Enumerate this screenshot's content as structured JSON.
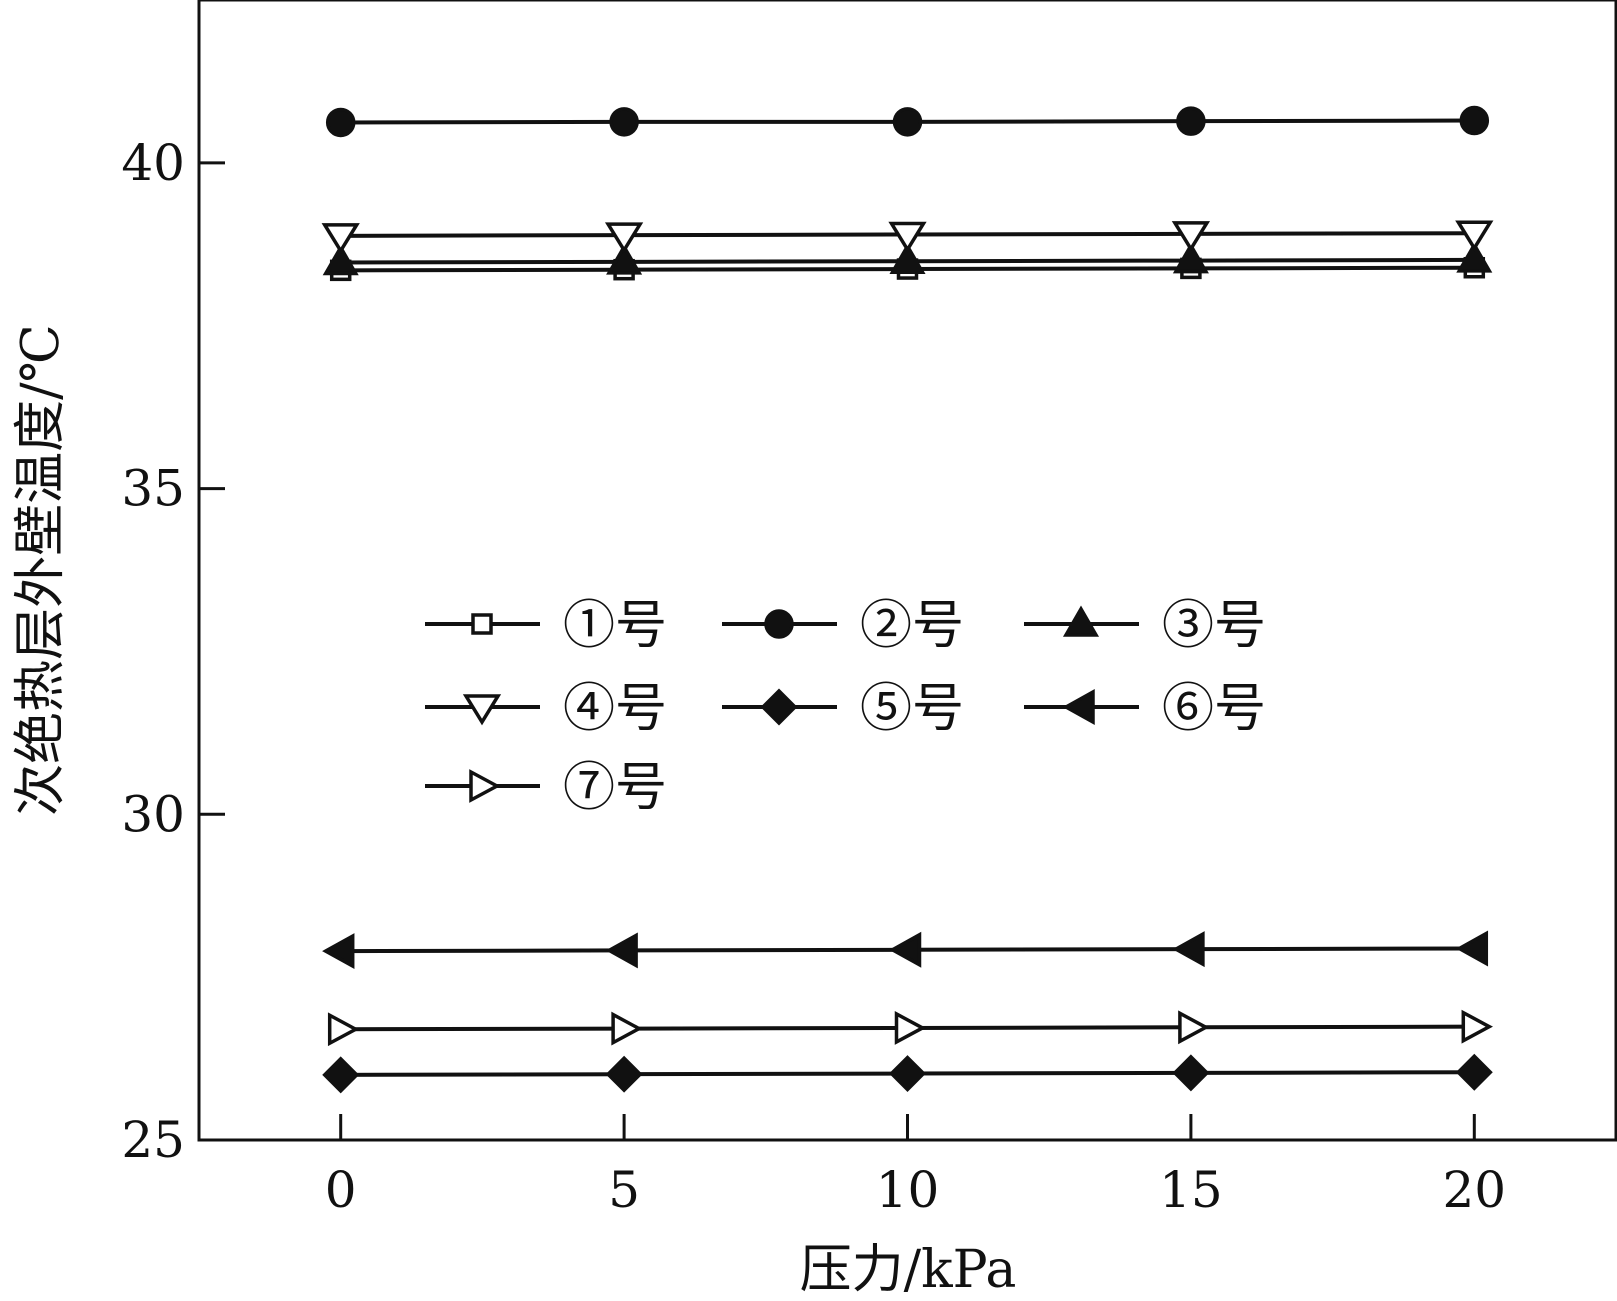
{
  "chart_data": {
    "type": "line",
    "xlabel": "压力/kPa",
    "ylabel": "次绝热层外壁温度/℃",
    "x": [
      0,
      5,
      10,
      15,
      20
    ],
    "xlim": [
      -2.5,
      22.5
    ],
    "ylim": [
      25,
      42.5
    ],
    "x_ticks": [
      0,
      5,
      10,
      15,
      20
    ],
    "x_tick_labels": [
      "0",
      "5",
      "10",
      "15",
      "20"
    ],
    "y_ticks": [
      25,
      30,
      35,
      40
    ],
    "y_tick_labels": [
      "25",
      "30",
      "35",
      "40"
    ],
    "grid": false,
    "legend_position": "center-left",
    "series": [
      {
        "name": "①号",
        "marker": "square-open",
        "values": [
          38.35,
          38.36,
          38.37,
          38.38,
          38.39
        ]
      },
      {
        "name": "②号",
        "marker": "circle-filled",
        "values": [
          40.62,
          40.63,
          40.63,
          40.64,
          40.65
        ]
      },
      {
        "name": "③号",
        "marker": "triangle-up-filled",
        "values": [
          38.47,
          38.48,
          38.49,
          38.5,
          38.51
        ]
      },
      {
        "name": "④号",
        "marker": "triangle-down-open",
        "values": [
          38.88,
          38.89,
          38.9,
          38.91,
          38.92
        ]
      },
      {
        "name": "⑤号",
        "marker": "diamond-filled",
        "values": [
          26.0,
          26.01,
          26.02,
          26.03,
          26.04
        ]
      },
      {
        "name": "⑥号",
        "marker": "triangle-left-filled",
        "values": [
          27.9,
          27.91,
          27.92,
          27.93,
          27.94
        ]
      },
      {
        "name": "⑦号",
        "marker": "triangle-right-open",
        "values": [
          26.7,
          26.71,
          26.72,
          26.73,
          26.74
        ]
      }
    ]
  }
}
